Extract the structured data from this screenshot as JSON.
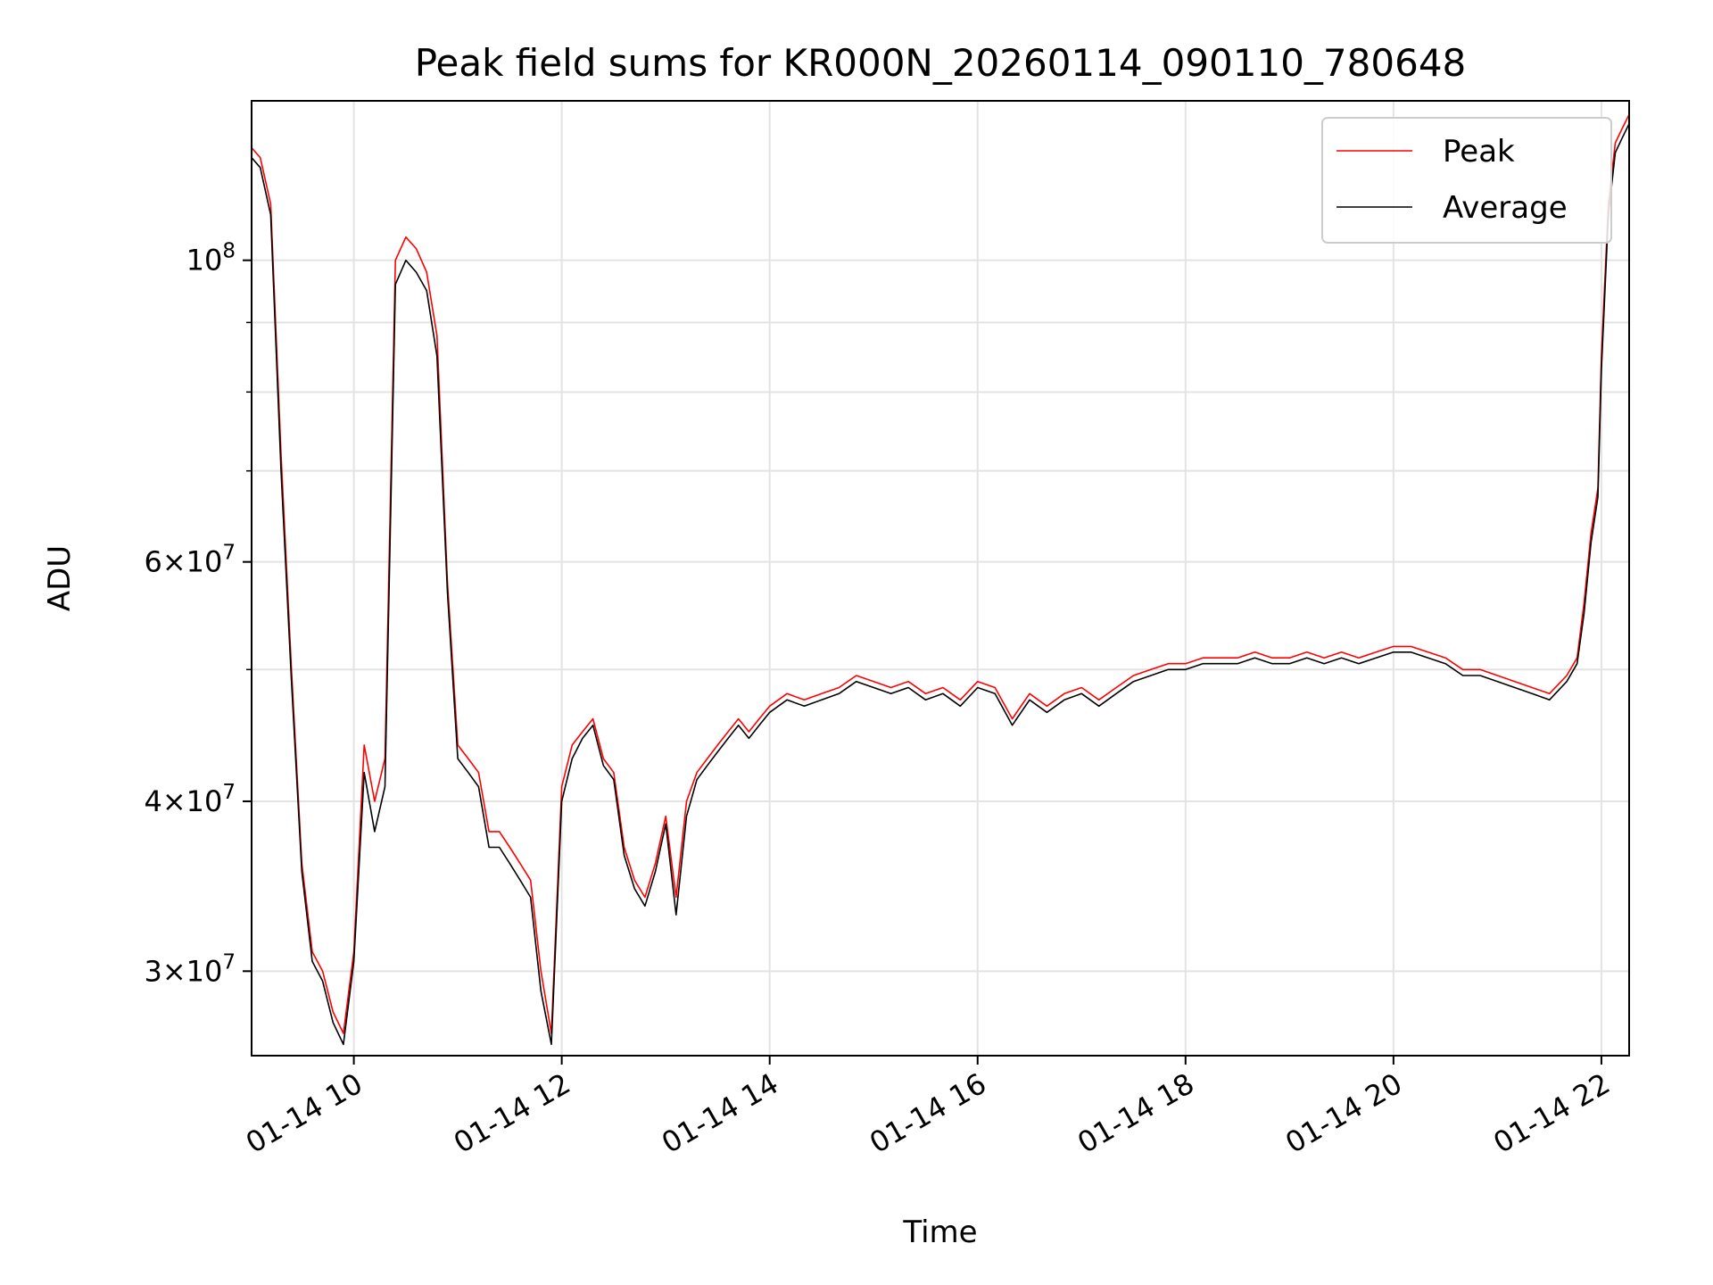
{
  "chart_data": {
    "type": "line",
    "title": "Peak field sums for KR000N_20260114_090110_780648",
    "xlabel": "Time",
    "ylabel": "ADU",
    "yscale": "log",
    "xlim": [
      "2026-01-14 09:01",
      "2026-01-14 22:16"
    ],
    "ylim": [
      26000000,
      131000000
    ],
    "grid": true,
    "legend_position": "upper right",
    "x_ticks": [
      {
        "value": "2026-01-14 10:00",
        "label": "01-14 10"
      },
      {
        "value": "2026-01-14 12:00",
        "label": "01-14 12"
      },
      {
        "value": "2026-01-14 14:00",
        "label": "01-14 14"
      },
      {
        "value": "2026-01-14 16:00",
        "label": "01-14 16"
      },
      {
        "value": "2026-01-14 18:00",
        "label": "01-14 18"
      },
      {
        "value": "2026-01-14 20:00",
        "label": "01-14 20"
      },
      {
        "value": "2026-01-14 22:00",
        "label": "01-14 22"
      }
    ],
    "y_ticks": [
      {
        "value": 30000000,
        "mantissa": "3",
        "exponent": "7"
      },
      {
        "value": 40000000,
        "mantissa": "4",
        "exponent": "7"
      },
      {
        "value": 60000000,
        "mantissa": "6",
        "exponent": "7"
      },
      {
        "value": 100000000,
        "mantissa": "",
        "exponent": "8"
      }
    ],
    "y_minor_ticks": [
      50000000,
      70000000,
      80000000,
      90000000
    ],
    "series": [
      {
        "name": "Peak",
        "color": "#ff0000",
        "x": [
          "2026-01-14 09:01",
          "2026-01-14 09:06",
          "2026-01-14 09:12",
          "2026-01-14 09:18",
          "2026-01-14 09:24",
          "2026-01-14 09:30",
          "2026-01-14 09:36",
          "2026-01-14 09:42",
          "2026-01-14 09:48",
          "2026-01-14 09:54",
          "2026-01-14 10:00",
          "2026-01-14 10:06",
          "2026-01-14 10:12",
          "2026-01-14 10:18",
          "2026-01-14 10:24",
          "2026-01-14 10:30",
          "2026-01-14 10:36",
          "2026-01-14 10:42",
          "2026-01-14 10:48",
          "2026-01-14 10:54",
          "2026-01-14 11:00",
          "2026-01-14 11:06",
          "2026-01-14 11:12",
          "2026-01-14 11:18",
          "2026-01-14 11:24",
          "2026-01-14 11:30",
          "2026-01-14 11:36",
          "2026-01-14 11:42",
          "2026-01-14 11:48",
          "2026-01-14 11:54",
          "2026-01-14 12:00",
          "2026-01-14 12:06",
          "2026-01-14 12:12",
          "2026-01-14 12:18",
          "2026-01-14 12:24",
          "2026-01-14 12:30",
          "2026-01-14 12:36",
          "2026-01-14 12:42",
          "2026-01-14 12:48",
          "2026-01-14 12:54",
          "2026-01-14 13:00",
          "2026-01-14 13:06",
          "2026-01-14 13:12",
          "2026-01-14 13:18",
          "2026-01-14 13:24",
          "2026-01-14 13:30",
          "2026-01-14 13:36",
          "2026-01-14 13:42",
          "2026-01-14 13:48",
          "2026-01-14 13:54",
          "2026-01-14 14:00",
          "2026-01-14 14:10",
          "2026-01-14 14:20",
          "2026-01-14 14:30",
          "2026-01-14 14:40",
          "2026-01-14 14:50",
          "2026-01-14 15:00",
          "2026-01-14 15:10",
          "2026-01-14 15:20",
          "2026-01-14 15:30",
          "2026-01-14 15:40",
          "2026-01-14 15:50",
          "2026-01-14 16:00",
          "2026-01-14 16:10",
          "2026-01-14 16:20",
          "2026-01-14 16:30",
          "2026-01-14 16:40",
          "2026-01-14 16:50",
          "2026-01-14 17:00",
          "2026-01-14 17:10",
          "2026-01-14 17:20",
          "2026-01-14 17:30",
          "2026-01-14 17:40",
          "2026-01-14 17:50",
          "2026-01-14 18:00",
          "2026-01-14 18:10",
          "2026-01-14 18:20",
          "2026-01-14 18:30",
          "2026-01-14 18:40",
          "2026-01-14 18:50",
          "2026-01-14 19:00",
          "2026-01-14 19:10",
          "2026-01-14 19:20",
          "2026-01-14 19:30",
          "2026-01-14 19:40",
          "2026-01-14 19:50",
          "2026-01-14 20:00",
          "2026-01-14 20:10",
          "2026-01-14 20:20",
          "2026-01-14 20:30",
          "2026-01-14 20:40",
          "2026-01-14 20:50",
          "2026-01-14 21:00",
          "2026-01-14 21:10",
          "2026-01-14 21:20",
          "2026-01-14 21:30",
          "2026-01-14 21:40",
          "2026-01-14 21:46",
          "2026-01-14 21:50",
          "2026-01-14 21:54",
          "2026-01-14 21:58",
          "2026-01-14 22:00",
          "2026-01-14 22:04",
          "2026-01-14 22:08",
          "2026-01-14 22:12",
          "2026-01-14 22:16"
        ],
        "y": [
          121000000,
          119000000,
          110000000,
          72000000,
          50000000,
          36000000,
          31000000,
          30000000,
          28000000,
          27000000,
          31000000,
          44000000,
          40000000,
          43000000,
          100000000,
          104000000,
          102000000,
          98000000,
          88000000,
          58000000,
          44000000,
          43000000,
          42000000,
          38000000,
          38000000,
          37000000,
          36000000,
          35000000,
          30000000,
          27000000,
          41000000,
          44000000,
          45000000,
          46000000,
          43000000,
          42000000,
          37000000,
          35000000,
          34000000,
          36000000,
          39000000,
          34000000,
          40000000,
          42000000,
          43000000,
          44000000,
          45000000,
          46000000,
          45000000,
          46000000,
          47000000,
          48000000,
          47500000,
          48000000,
          48500000,
          49500000,
          49000000,
          48500000,
          49000000,
          48000000,
          48500000,
          47500000,
          49000000,
          48500000,
          46000000,
          48000000,
          47000000,
          48000000,
          48500000,
          47500000,
          48500000,
          49500000,
          50000000,
          50500000,
          50500000,
          51000000,
          51000000,
          51000000,
          51500000,
          51000000,
          51000000,
          51500000,
          51000000,
          51500000,
          51000000,
          51500000,
          52000000,
          52000000,
          51500000,
          51000000,
          50000000,
          50000000,
          49500000,
          49000000,
          48500000,
          48000000,
          49500000,
          51000000,
          56000000,
          63000000,
          68000000,
          85000000,
          110000000,
          122000000,
          125000000,
          128000000
        ]
      },
      {
        "name": "Average",
        "color": "#000000",
        "x": [
          "2026-01-14 09:01",
          "2026-01-14 09:06",
          "2026-01-14 09:12",
          "2026-01-14 09:18",
          "2026-01-14 09:24",
          "2026-01-14 09:30",
          "2026-01-14 09:36",
          "2026-01-14 09:42",
          "2026-01-14 09:48",
          "2026-01-14 09:54",
          "2026-01-14 10:00",
          "2026-01-14 10:06",
          "2026-01-14 10:12",
          "2026-01-14 10:18",
          "2026-01-14 10:24",
          "2026-01-14 10:30",
          "2026-01-14 10:36",
          "2026-01-14 10:42",
          "2026-01-14 10:48",
          "2026-01-14 10:54",
          "2026-01-14 11:00",
          "2026-01-14 11:06",
          "2026-01-14 11:12",
          "2026-01-14 11:18",
          "2026-01-14 11:24",
          "2026-01-14 11:30",
          "2026-01-14 11:36",
          "2026-01-14 11:42",
          "2026-01-14 11:48",
          "2026-01-14 11:54",
          "2026-01-14 12:00",
          "2026-01-14 12:06",
          "2026-01-14 12:12",
          "2026-01-14 12:18",
          "2026-01-14 12:24",
          "2026-01-14 12:30",
          "2026-01-14 12:36",
          "2026-01-14 12:42",
          "2026-01-14 12:48",
          "2026-01-14 12:54",
          "2026-01-14 13:00",
          "2026-01-14 13:06",
          "2026-01-14 13:12",
          "2026-01-14 13:18",
          "2026-01-14 13:24",
          "2026-01-14 13:30",
          "2026-01-14 13:36",
          "2026-01-14 13:42",
          "2026-01-14 13:48",
          "2026-01-14 13:54",
          "2026-01-14 14:00",
          "2026-01-14 14:10",
          "2026-01-14 14:20",
          "2026-01-14 14:30",
          "2026-01-14 14:40",
          "2026-01-14 14:50",
          "2026-01-14 15:00",
          "2026-01-14 15:10",
          "2026-01-14 15:20",
          "2026-01-14 15:30",
          "2026-01-14 15:40",
          "2026-01-14 15:50",
          "2026-01-14 16:00",
          "2026-01-14 16:10",
          "2026-01-14 16:20",
          "2026-01-14 16:30",
          "2026-01-14 16:40",
          "2026-01-14 16:50",
          "2026-01-14 17:00",
          "2026-01-14 17:10",
          "2026-01-14 17:20",
          "2026-01-14 17:30",
          "2026-01-14 17:40",
          "2026-01-14 17:50",
          "2026-01-14 18:00",
          "2026-01-14 18:10",
          "2026-01-14 18:20",
          "2026-01-14 18:30",
          "2026-01-14 18:40",
          "2026-01-14 18:50",
          "2026-01-14 19:00",
          "2026-01-14 19:10",
          "2026-01-14 19:20",
          "2026-01-14 19:30",
          "2026-01-14 19:40",
          "2026-01-14 19:50",
          "2026-01-14 20:00",
          "2026-01-14 20:10",
          "2026-01-14 20:20",
          "2026-01-14 20:30",
          "2026-01-14 20:40",
          "2026-01-14 20:50",
          "2026-01-14 21:00",
          "2026-01-14 21:10",
          "2026-01-14 21:20",
          "2026-01-14 21:30",
          "2026-01-14 21:40",
          "2026-01-14 21:46",
          "2026-01-14 21:50",
          "2026-01-14 21:54",
          "2026-01-14 21:58",
          "2026-01-14 22:00",
          "2026-01-14 22:04",
          "2026-01-14 22:08",
          "2026-01-14 22:12",
          "2026-01-14 22:16"
        ],
        "y": [
          119000000,
          117000000,
          108000000,
          70000000,
          49000000,
          35500000,
          30500000,
          29500000,
          27500000,
          26500000,
          30500000,
          42000000,
          38000000,
          41000000,
          96000000,
          100000000,
          98000000,
          95000000,
          85000000,
          57000000,
          43000000,
          42000000,
          41000000,
          37000000,
          37000000,
          36000000,
          35000000,
          34000000,
          29000000,
          26500000,
          40000000,
          43000000,
          44500000,
          45500000,
          42500000,
          41500000,
          36500000,
          34500000,
          33500000,
          35500000,
          38500000,
          33000000,
          39000000,
          41500000,
          42500000,
          43500000,
          44500000,
          45500000,
          44500000,
          45500000,
          46500000,
          47500000,
          47000000,
          47500000,
          48000000,
          49000000,
          48500000,
          48000000,
          48500000,
          47500000,
          48000000,
          47000000,
          48500000,
          48000000,
          45500000,
          47500000,
          46500000,
          47500000,
          48000000,
          47000000,
          48000000,
          49000000,
          49500000,
          50000000,
          50000000,
          50500000,
          50500000,
          50500000,
          51000000,
          50500000,
          50500000,
          51000000,
          50500000,
          51000000,
          50500000,
          51000000,
          51500000,
          51500000,
          51000000,
          50500000,
          49500000,
          49500000,
          49000000,
          48500000,
          48000000,
          47500000,
          49000000,
          50500000,
          55000000,
          62000000,
          67000000,
          83000000,
          108000000,
          120000000,
          123000000,
          126000000
        ]
      }
    ]
  }
}
